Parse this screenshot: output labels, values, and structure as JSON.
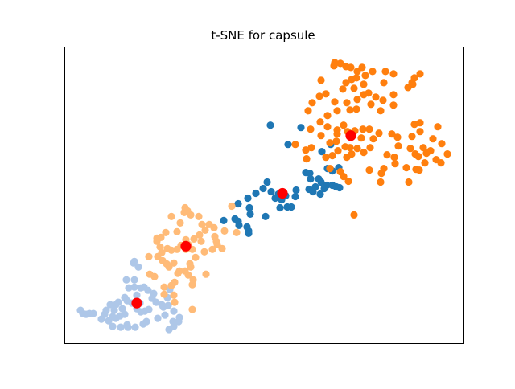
{
  "chart_data": {
    "type": "scatter",
    "title": "t-SNE for capsule",
    "xlabel": "",
    "ylabel": "",
    "xlim": [
      0,
      495
    ],
    "ylim": [
      0,
      370
    ],
    "grid": false,
    "axis_ticks": false,
    "series": [
      {
        "color": "#1f77b4",
        "points": [
          [
            256,
            272
          ],
          [
            294,
            269
          ],
          [
            278,
            248
          ],
          [
            331,
            248
          ],
          [
            320,
            239
          ],
          [
            341,
            219
          ],
          [
            327,
            218
          ],
          [
            333,
            215
          ],
          [
            300,
            213
          ],
          [
            305,
            212
          ],
          [
            306,
            205
          ],
          [
            316,
            205
          ],
          [
            312,
            195
          ],
          [
            304,
            192
          ],
          [
            309,
            189
          ],
          [
            288,
            191
          ],
          [
            257,
            189
          ],
          [
            266,
            186
          ],
          [
            275,
            184
          ],
          [
            287,
            183
          ],
          [
            269,
            182
          ],
          [
            270,
            179
          ],
          [
            282,
            170
          ],
          [
            231,
            161
          ],
          [
            277,
            170
          ],
          [
            323,
            193
          ],
          [
            216,
            174
          ],
          [
            230,
            169
          ],
          [
            228,
            181
          ],
          [
            250,
            158
          ],
          [
            212,
            155
          ],
          [
            198,
            153
          ],
          [
            216,
            152
          ],
          [
            217,
            147
          ],
          [
            227,
            145
          ],
          [
            229,
            137
          ],
          [
            252,
            201
          ],
          [
            247,
            193
          ],
          [
            238,
            187
          ],
          [
            262,
            181
          ],
          [
            268,
            169
          ],
          [
            318,
            186
          ],
          [
            319,
            201
          ],
          [
            326,
            197
          ],
          [
            333,
            197
          ],
          [
            338,
            195
          ],
          [
            229,
            140
          ],
          [
            342,
            194
          ]
        ]
      },
      {
        "color": "#ff7f0e",
        "points": [
          [
            336,
            350
          ],
          [
            343,
            349
          ],
          [
            335,
            346
          ],
          [
            350,
            345
          ],
          [
            356,
            344
          ],
          [
            370,
            344
          ],
          [
            383,
            339
          ],
          [
            364,
            339
          ],
          [
            399,
            339
          ],
          [
            409,
            336
          ],
          [
            435,
            331
          ],
          [
            442,
            336
          ],
          [
            433,
            323
          ],
          [
            427,
            319
          ],
          [
            432,
            325
          ],
          [
            374,
            334
          ],
          [
            363,
            331
          ],
          [
            357,
            329
          ],
          [
            350,
            325
          ],
          [
            346,
            317
          ],
          [
            319,
            328
          ],
          [
            325,
            311
          ],
          [
            317,
            308
          ],
          [
            308,
            300
          ],
          [
            336,
            301
          ],
          [
            351,
            300
          ],
          [
            364,
            304
          ],
          [
            378,
            312
          ],
          [
            387,
            307
          ],
          [
            396,
            303
          ],
          [
            409,
            297
          ],
          [
            409,
            310
          ],
          [
            397,
            325
          ],
          [
            372,
            323
          ],
          [
            360,
            318
          ],
          [
            372,
            310
          ],
          [
            381,
            298
          ],
          [
            393,
            290
          ],
          [
            363,
            292
          ],
          [
            355,
            291
          ],
          [
            339,
            290
          ],
          [
            327,
            284
          ],
          [
            318,
            276
          ],
          [
            303,
            290
          ],
          [
            327,
            270
          ],
          [
            339,
            266
          ],
          [
            347,
            272
          ],
          [
            352,
            264
          ],
          [
            361,
            265
          ],
          [
            371,
            267
          ],
          [
            379,
            267
          ],
          [
            391,
            262
          ],
          [
            407,
            261
          ],
          [
            414,
            257
          ],
          [
            432,
            258
          ],
          [
            435,
            273
          ],
          [
            442,
            264
          ],
          [
            464,
            270
          ],
          [
            430,
            243
          ],
          [
            436,
            236
          ],
          [
            440,
            233
          ],
          [
            450,
            237
          ],
          [
            455,
            240
          ],
          [
            462,
            229
          ],
          [
            468,
            225
          ],
          [
            476,
            236
          ],
          [
            469,
            249
          ],
          [
            446,
            244
          ],
          [
            448,
            225
          ],
          [
            441,
            216
          ],
          [
            437,
            217
          ],
          [
            428,
            201
          ],
          [
            425,
            219
          ],
          [
            401,
            235
          ],
          [
            411,
            224
          ],
          [
            397,
            218
          ],
          [
            394,
            212
          ],
          [
            393,
            201
          ],
          [
            379,
            216
          ],
          [
            353,
            202
          ],
          [
            357,
            236
          ],
          [
            355,
            244
          ],
          [
            369,
            256
          ],
          [
            384,
            255
          ],
          [
            380,
            244
          ],
          [
            372,
            238
          ],
          [
            364,
            243
          ],
          [
            349,
            245
          ],
          [
            338,
            252
          ],
          [
            330,
            250
          ],
          [
            339,
            261
          ],
          [
            306,
            267
          ],
          [
            319,
            259
          ],
          [
            307,
            244
          ],
          [
            301,
            230
          ],
          [
            300,
            241
          ],
          [
            287,
            248
          ],
          [
            333,
            234
          ],
          [
            351,
            232
          ],
          [
            340,
            240
          ],
          [
            343,
            214
          ],
          [
            347,
            208
          ],
          [
            330,
            218
          ],
          [
            325,
            232
          ],
          [
            360,
            160
          ],
          [
            442,
            275
          ],
          [
            458,
            255
          ],
          [
            415,
            246
          ],
          [
            410,
            232
          ]
        ]
      },
      {
        "color": "#aec7e8",
        "points": [
          [
            20,
            41
          ],
          [
            23,
            37
          ],
          [
            27,
            36
          ],
          [
            31,
            37
          ],
          [
            36,
            37
          ],
          [
            50,
            36
          ],
          [
            55,
            28
          ],
          [
            60,
            33
          ],
          [
            64,
            31
          ],
          [
            69,
            34
          ],
          [
            75,
            36
          ],
          [
            60,
            21
          ],
          [
            70,
            20
          ],
          [
            78,
            23
          ],
          [
            88,
            20
          ],
          [
            98,
            24
          ],
          [
            102,
            27
          ],
          [
            116,
            31
          ],
          [
            125,
            35
          ],
          [
            123,
            45
          ],
          [
            129,
            47
          ],
          [
            136,
            40
          ],
          [
            130,
            17
          ],
          [
            136,
            21
          ],
          [
            142,
            27
          ],
          [
            143,
            32
          ],
          [
            135,
            27
          ],
          [
            79,
            20
          ],
          [
            100,
            40
          ],
          [
            72,
            43
          ],
          [
            64,
            48
          ],
          [
            67,
            51
          ],
          [
            75,
            57
          ],
          [
            78,
            53
          ],
          [
            90,
            43
          ],
          [
            95,
            39
          ],
          [
            94,
            50
          ],
          [
            95,
            69
          ],
          [
            99,
            70
          ],
          [
            104,
            66
          ],
          [
            111,
            62
          ],
          [
            109,
            56
          ],
          [
            114,
            51
          ],
          [
            121,
            48
          ],
          [
            128,
            57
          ],
          [
            131,
            67
          ],
          [
            90,
            60
          ],
          [
            87,
            70
          ],
          [
            87,
            79
          ],
          [
            80,
            69
          ],
          [
            86,
            100
          ],
          [
            87,
            102
          ],
          [
            92,
            95
          ],
          [
            77,
            79
          ],
          [
            84,
            50
          ],
          [
            57,
            48
          ],
          [
            62,
            41
          ],
          [
            52,
            41
          ],
          [
            46,
            30
          ],
          [
            105,
            42
          ]
        ]
      },
      {
        "color": "#ffbb78",
        "points": [
          [
            150,
            169
          ],
          [
            153,
            165
          ],
          [
            144,
            150
          ],
          [
            133,
            158
          ],
          [
            140,
            139
          ],
          [
            149,
            163
          ],
          [
            157,
            160
          ],
          [
            167,
            158
          ],
          [
            171,
            148
          ],
          [
            180,
            148
          ],
          [
            186,
            144
          ],
          [
            199,
            140
          ],
          [
            214,
            138
          ],
          [
            208,
            171
          ],
          [
            175,
            141
          ],
          [
            168,
            135
          ],
          [
            161,
            130
          ],
          [
            151,
            129
          ],
          [
            151,
            117
          ],
          [
            133,
            116
          ],
          [
            140,
            117
          ],
          [
            145,
            122
          ],
          [
            154,
            123
          ],
          [
            159,
            117
          ],
          [
            163,
            107
          ],
          [
            157,
            95
          ],
          [
            154,
            85
          ],
          [
            160,
            79
          ],
          [
            159,
            73
          ],
          [
            137,
            51
          ],
          [
            137,
            76
          ],
          [
            143,
            90
          ],
          [
            130,
            95
          ],
          [
            127,
            99
          ],
          [
            122,
            103
          ],
          [
            116,
            108
          ],
          [
            105,
            108
          ],
          [
            115,
            127
          ],
          [
            120,
            132
          ],
          [
            126,
            138
          ],
          [
            115,
            131
          ],
          [
            121,
            113
          ],
          [
            128,
            118
          ],
          [
            119,
            120
          ],
          [
            136,
            100
          ],
          [
            170,
            127
          ],
          [
            187,
            133
          ],
          [
            189,
            127
          ],
          [
            196,
            118
          ],
          [
            190,
            123
          ],
          [
            184,
            117
          ],
          [
            174,
            114
          ],
          [
            156,
            99
          ],
          [
            150,
            90
          ],
          [
            141,
            87
          ],
          [
            133,
            72
          ],
          [
            124,
            70
          ],
          [
            124,
            61
          ],
          [
            136,
            60
          ],
          [
            112,
            83
          ],
          [
            106,
            86
          ],
          [
            176,
            86
          ],
          [
            159,
            42
          ]
        ]
      }
    ],
    "centroids": {
      "color": "#ff0000",
      "points": [
        [
          356,
          259
        ],
        [
          271,
          187
        ],
        [
          151,
          121
        ],
        [
          90,
          50
        ]
      ]
    }
  }
}
